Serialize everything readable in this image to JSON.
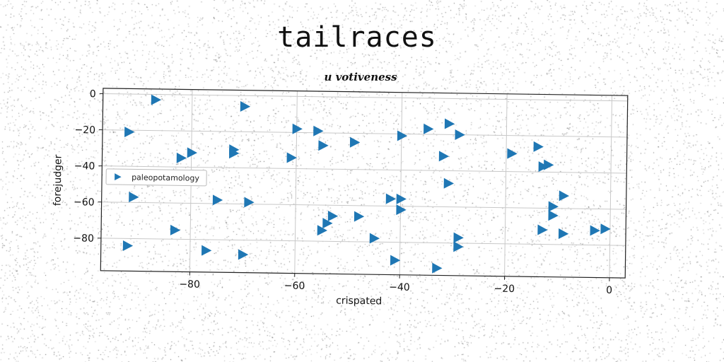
{
  "chart_data": {
    "type": "scatter",
    "title": "tailraces",
    "subtitle": "u votiveness",
    "xlabel": "crispated",
    "ylabel": "forejudger",
    "xlim": [
      -97,
      3
    ],
    "ylim": [
      -98,
      3
    ],
    "xticks": [
      -80,
      -60,
      -40,
      -20,
      0
    ],
    "yticks": [
      0,
      -20,
      -40,
      -60,
      -80
    ],
    "grid": true,
    "legend_position": "center-left",
    "series": [
      {
        "name": "paleopotamology",
        "color": "#1f77b4",
        "marker": "triangle-right",
        "points": [
          [
            -87,
            -3
          ],
          [
            -70,
            -6
          ],
          [
            -92,
            -21
          ],
          [
            -60,
            -18
          ],
          [
            -56,
            -19
          ],
          [
            -49,
            -25
          ],
          [
            -55,
            -27
          ],
          [
            -72,
            -30
          ],
          [
            -72,
            -32
          ],
          [
            -80,
            -32
          ],
          [
            -82,
            -35
          ],
          [
            -61,
            -34
          ],
          [
            -40,
            -21
          ],
          [
            -35,
            -17
          ],
          [
            -31,
            -14
          ],
          [
            -29,
            -20
          ],
          [
            -32,
            -32
          ],
          [
            -19,
            -30
          ],
          [
            -14,
            -26
          ],
          [
            -13,
            -37
          ],
          [
            -12,
            -36
          ],
          [
            -31,
            -47
          ],
          [
            -91,
            -57
          ],
          [
            -75,
            -58
          ],
          [
            -69,
            -59
          ],
          [
            -42,
            -56
          ],
          [
            -40,
            -56
          ],
          [
            -40,
            -62
          ],
          [
            -53,
            -66
          ],
          [
            -48,
            -66
          ],
          [
            -54,
            -70
          ],
          [
            -55,
            -74
          ],
          [
            -45,
            -78
          ],
          [
            -83,
            -75
          ],
          [
            -92,
            -84
          ],
          [
            -77,
            -86
          ],
          [
            -70,
            -88
          ],
          [
            -41,
            -90
          ],
          [
            -33,
            -94
          ],
          [
            -29,
            -77
          ],
          [
            -29,
            -82
          ],
          [
            -9,
            -53
          ],
          [
            -11,
            -59
          ],
          [
            -11,
            -64
          ],
          [
            -13,
            -72
          ],
          [
            -9,
            -74
          ],
          [
            -3,
            -72
          ],
          [
            -1,
            -71
          ]
        ]
      }
    ]
  }
}
